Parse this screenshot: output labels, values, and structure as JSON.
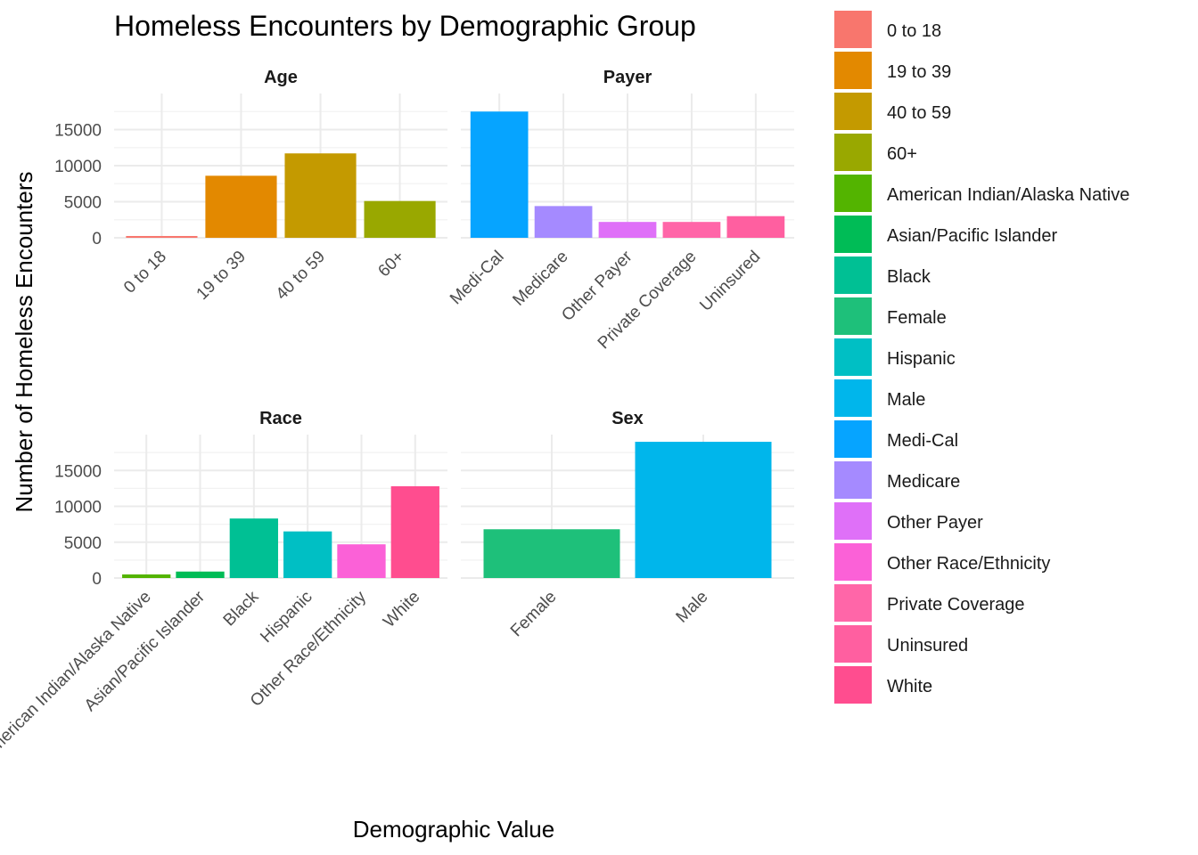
{
  "chart_data": {
    "type": "bar",
    "title": "Homeless Encounters by Demographic Group",
    "xlabel": "Demographic Value",
    "ylabel": "Number of Homeless Encounters",
    "ylim": [
      0,
      20000
    ],
    "yticks": [
      0,
      5000,
      10000,
      15000
    ],
    "grid": true,
    "legend_position": "right",
    "facets": [
      {
        "name": "Age",
        "categories": [
          "0 to 18",
          "19 to 39",
          "40 to 59",
          "60+"
        ],
        "values": [
          250,
          8600,
          11700,
          5100
        ]
      },
      {
        "name": "Payer",
        "categories": [
          "Medi-Cal",
          "Medicare",
          "Other Payer",
          "Private Coverage",
          "Uninsured"
        ],
        "values": [
          17500,
          4400,
          2200,
          2200,
          3000
        ]
      },
      {
        "name": "Race",
        "categories": [
          "American Indian/Alaska Native",
          "Asian/Pacific Islander",
          "Black",
          "Hispanic",
          "Other Race/Ethnicity",
          "White"
        ],
        "values": [
          500,
          900,
          8300,
          6500,
          4700,
          12800
        ]
      },
      {
        "name": "Sex",
        "categories": [
          "Female",
          "Male"
        ],
        "values": [
          6800,
          19000
        ]
      }
    ],
    "legend": [
      {
        "label": "0 to 18",
        "color": "#F8766D"
      },
      {
        "label": "19 to 39",
        "color": "#E38900"
      },
      {
        "label": "40 to 59",
        "color": "#C49A00"
      },
      {
        "label": "60+",
        "color": "#99A800"
      },
      {
        "label": "American Indian/Alaska Native",
        "color": "#53B400"
      },
      {
        "label": "Asian/Pacific Islander",
        "color": "#00BC56"
      },
      {
        "label": "Black",
        "color": "#00C094"
      },
      {
        "label": "Female",
        "color": "#1EC07A"
      },
      {
        "label": "Hispanic",
        "color": "#00BFC4"
      },
      {
        "label": "Male",
        "color": "#00B6EB"
      },
      {
        "label": "Medi-Cal",
        "color": "#06A4FF"
      },
      {
        "label": "Medicare",
        "color": "#A58AFF"
      },
      {
        "label": "Other Payer",
        "color": "#DF70F8"
      },
      {
        "label": "Other Race/Ethnicity",
        "color": "#FB61D7"
      },
      {
        "label": "Private Coverage",
        "color": "#FF66A8"
      },
      {
        "label": "Uninsured",
        "color": "#FF5FA0"
      },
      {
        "label": "White",
        "color": "#FF4D8F"
      }
    ]
  }
}
